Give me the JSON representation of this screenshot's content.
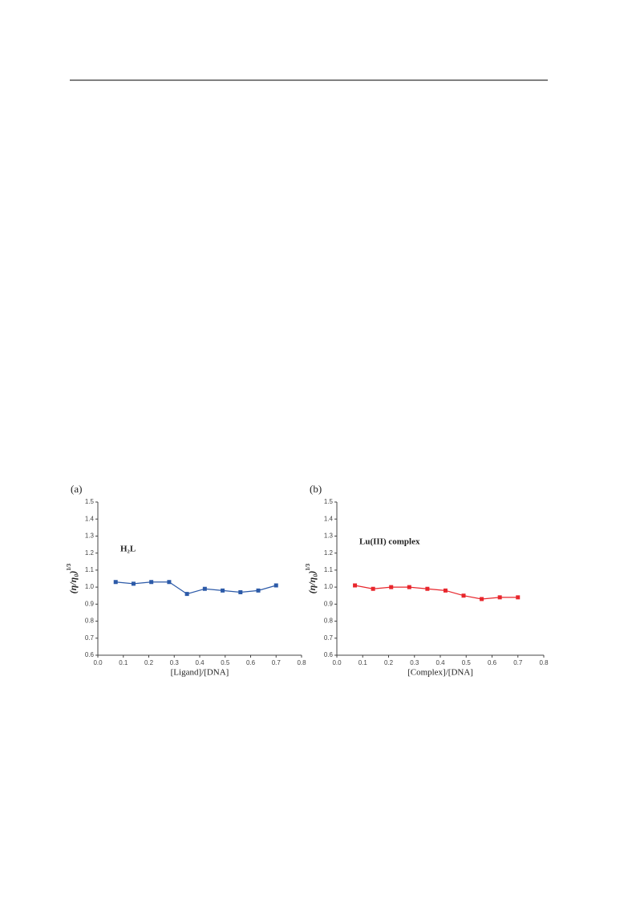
{
  "chart_data": [
    {
      "type": "line",
      "panel": "(a)",
      "annotation": "H₂L",
      "x_label": "[Ligand]/[DNA]",
      "y_label": "(η/η₀)",
      "y_label_sup": "1/3",
      "x": [
        0.07,
        0.14,
        0.21,
        0.28,
        0.35,
        0.42,
        0.49,
        0.56,
        0.63,
        0.7
      ],
      "series": [
        {
          "color": "#2c5aa8",
          "values": [
            1.03,
            1.02,
            1.03,
            1.03,
            0.96,
            0.99,
            0.98,
            0.97,
            0.98,
            1.01
          ]
        }
      ],
      "xlim": [
        0,
        0.8
      ],
      "ylim": [
        0.6,
        1.5
      ],
      "xticks": [
        {
          "value": 0,
          "label": "0.0"
        },
        0.1,
        0.2,
        0.3,
        0.4,
        0.5,
        0.6,
        0.7,
        0.8
      ],
      "yticks": [
        0.6,
        0.7,
        0.8,
        0.9,
        {
          "value": 1,
          "label": "1.0"
        },
        1.1,
        1.2,
        1.3,
        1.4,
        1.5
      ]
    },
    {
      "type": "line",
      "panel": "(b)",
      "annotation": "Lu(III) complex",
      "x_label": "[Complex]/[DNA]",
      "y_label": "(η/η₀)",
      "y_label_sup": "1/3",
      "x": [
        0.07,
        0.14,
        0.21,
        0.28,
        0.35,
        0.42,
        0.49,
        0.56,
        0.63,
        0.7
      ],
      "series": [
        {
          "color": "#e8262c",
          "values": [
            1.01,
            0.99,
            1.0,
            1.0,
            0.99,
            0.98,
            0.95,
            0.93,
            0.94,
            0.94
          ]
        }
      ],
      "xlim": [
        0,
        0.8
      ],
      "ylim": [
        0.6,
        1.5
      ],
      "xticks": [
        {
          "value": 0,
          "label": "0.0"
        },
        0.1,
        0.2,
        0.3,
        0.4,
        0.5,
        0.6,
        0.7,
        0.8
      ],
      "yticks": [
        0.6,
        0.7,
        0.8,
        0.9,
        {
          "value": 1,
          "label": "1.0"
        },
        1.1,
        1.2,
        1.3,
        1.4,
        1.5
      ]
    }
  ]
}
